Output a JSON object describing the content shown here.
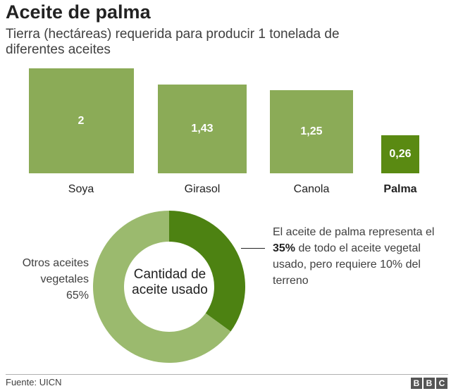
{
  "header": {
    "title": "Aceite de palma",
    "subtitle": "Tierra (hectáreas) requerida para producir 1 tonelada de diferentes aceites"
  },
  "chart_data": [
    {
      "type": "bar",
      "title": "Tierra (hectáreas) requerida para producir 1 tonelada de diferentes aceites",
      "categories": [
        "Soya",
        "Girasol",
        "Canola",
        "Palma"
      ],
      "values": [
        2,
        1.43,
        1.25,
        0.26
      ],
      "value_labels": [
        "2",
        "1,43",
        "1,25",
        "0,26"
      ],
      "unit": "hectáreas",
      "highlight": "Palma"
    },
    {
      "type": "pie",
      "center_label": "Cantidad de aceite usado",
      "slices": [
        {
          "name": "Aceite de palma",
          "value": 35
        },
        {
          "name": "Otros aceites vegetales",
          "value": 65
        }
      ]
    }
  ],
  "donut": {
    "center_label": "Cantidad de aceite usado",
    "others_label_line1": "Otros aceites",
    "others_label_line2": "vegetales",
    "others_value": "65%",
    "annotation_before": "El aceite de palma representa el ",
    "annotation_bold": "35%",
    "annotation_after": " de todo el aceite vegetal usado, pero requiere 10% del terreno"
  },
  "footer": {
    "source": "Fuente: UICN",
    "logo_letters": [
      "B",
      "B",
      "C"
    ]
  },
  "colors": {
    "bar": "#8bab57",
    "highlight": "#5a8a12",
    "donut_light": "#9bba6e",
    "donut_dark": "#4d8212"
  }
}
